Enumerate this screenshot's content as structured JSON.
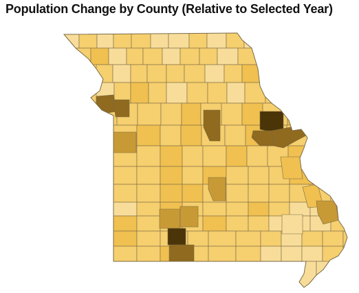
{
  "title": "Population Change by County (Relative to Selected Year)",
  "colors": {
    "c1": "#f8dd9a",
    "c2": "#f6cf6e",
    "c3": "#f0c050",
    "c4": "#c89a35",
    "c5": "#8f6a1f",
    "c6": "#4a3408",
    "border": "#7a6a45"
  },
  "legend_scale": [
    "c1",
    "c2",
    "c3",
    "c4",
    "c5",
    "c6"
  ]
}
